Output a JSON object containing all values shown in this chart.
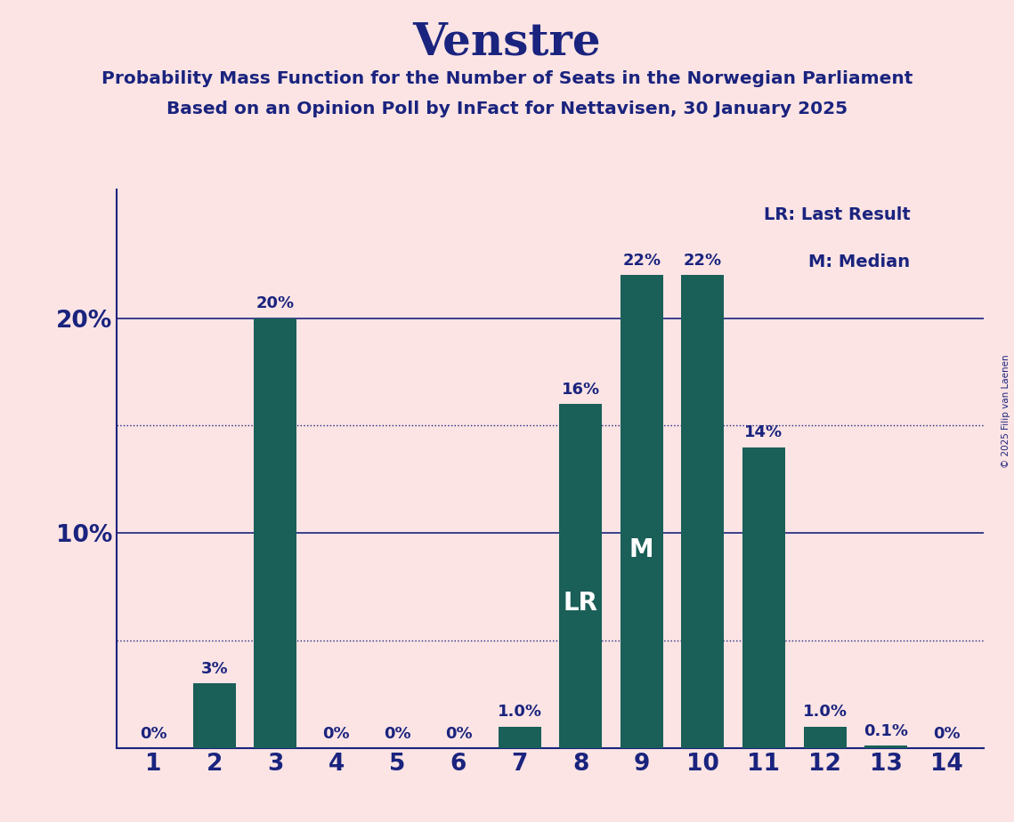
{
  "title": "Venstre",
  "subtitle_line1": "Probability Mass Function for the Number of Seats in the Norwegian Parliament",
  "subtitle_line2": "Based on an Opinion Poll by InFact for Nettavisen, 30 January 2025",
  "copyright": "© 2025 Filip van Laenen",
  "categories": [
    1,
    2,
    3,
    4,
    5,
    6,
    7,
    8,
    9,
    10,
    11,
    12,
    13,
    14
  ],
  "values": [
    0.0,
    3.0,
    20.0,
    0.0,
    0.0,
    0.0,
    1.0,
    16.0,
    22.0,
    22.0,
    14.0,
    1.0,
    0.1,
    0.0
  ],
  "bar_labels": [
    "0%",
    "3%",
    "20%",
    "0%",
    "0%",
    "0%",
    "1.0%",
    "16%",
    "22%",
    "22%",
    "14%",
    "1.0%",
    "0.1%",
    "0%"
  ],
  "bar_color": "#1a5f58",
  "background_color": "#fce4e4",
  "title_color": "#1a237e",
  "subtitle_color": "#1a237e",
  "axis_color": "#1a237e",
  "tick_color": "#1a237e",
  "bar_label_color": "#1a237e",
  "dotted_lines": [
    5.0,
    15.0
  ],
  "solid_lines": [
    10.0,
    20.0
  ],
  "lr_bar_idx": 7,
  "median_bar_idx": 8,
  "legend_text_lr": "LR: Last Result",
  "legend_text_m": "M: Median",
  "ylim": [
    0,
    26
  ]
}
